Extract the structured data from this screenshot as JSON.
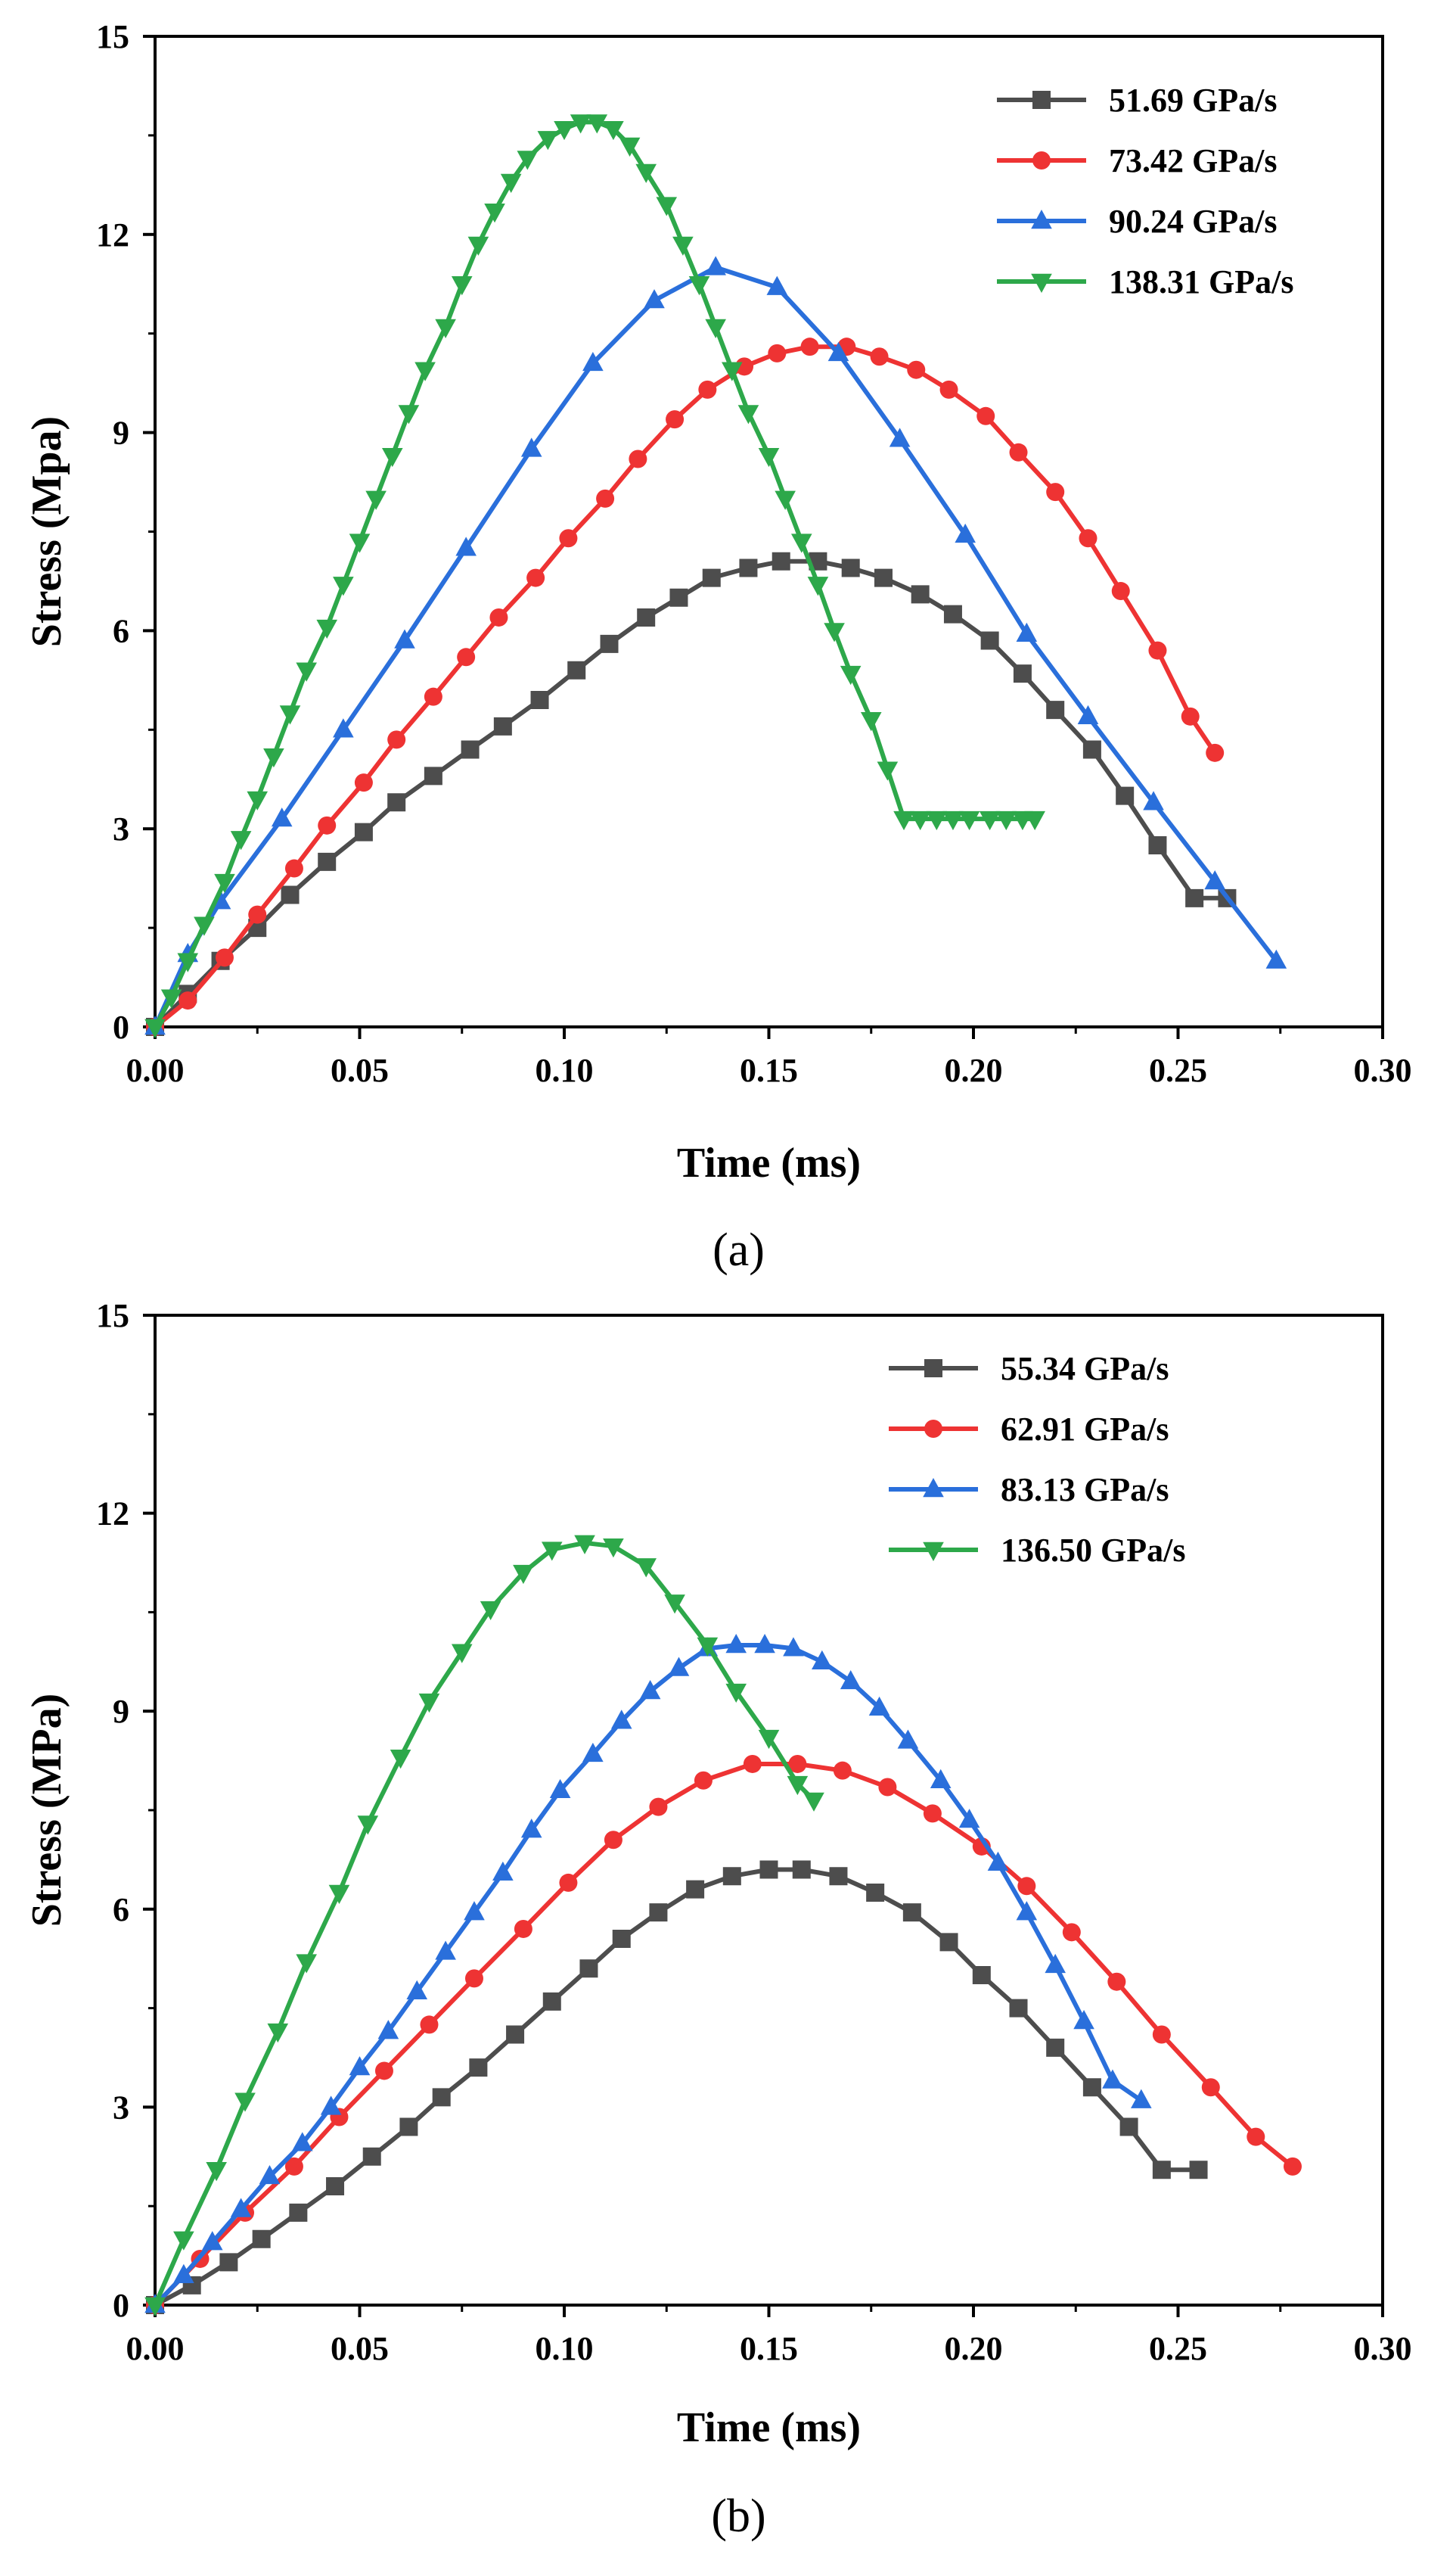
{
  "chart_data": [
    {
      "type": "line",
      "caption": "(a)",
      "xlabel": "Time (ms)",
      "ylabel": "Stress (Mpa)",
      "xlim": [
        0,
        0.3
      ],
      "ylim": [
        0,
        15
      ],
      "xticks": [
        "0.00",
        "0.05",
        "0.10",
        "0.15",
        "0.20",
        "0.25",
        "0.30"
      ],
      "yticks": [
        "0",
        "3",
        "6",
        "9",
        "12",
        "15"
      ],
      "legend_position": "top-right",
      "series": [
        {
          "name": "51.69 GPa/s",
          "color": "#4d4d4d",
          "marker": "square",
          "x": [
            0,
            0.008,
            0.016,
            0.025,
            0.033,
            0.042,
            0.051,
            0.059,
            0.068,
            0.077,
            0.085,
            0.094,
            0.103,
            0.111,
            0.12,
            0.128,
            0.136,
            0.145,
            0.153,
            0.162,
            0.17,
            0.178,
            0.187,
            0.195,
            0.204,
            0.212,
            0.22,
            0.229,
            0.237,
            0.245,
            0.254,
            0.262
          ],
          "y": [
            0,
            0.5,
            1.0,
            1.5,
            2.0,
            2.5,
            2.95,
            3.4,
            3.8,
            4.2,
            4.55,
            4.95,
            5.4,
            5.8,
            6.2,
            6.5,
            6.8,
            6.95,
            7.05,
            7.05,
            6.95,
            6.8,
            6.55,
            6.25,
            5.85,
            5.35,
            4.8,
            4.2,
            3.5,
            2.75,
            1.95,
            1.95
          ]
        },
        {
          "name": "73.42 GPa/s",
          "color": "#ee3333",
          "marker": "circle",
          "x": [
            0,
            0.008,
            0.017,
            0.025,
            0.034,
            0.042,
            0.051,
            0.059,
            0.068,
            0.076,
            0.084,
            0.093,
            0.101,
            0.11,
            0.118,
            0.127,
            0.135,
            0.144,
            0.152,
            0.16,
            0.169,
            0.177,
            0.186,
            0.194,
            0.203,
            0.211,
            0.22,
            0.228,
            0.236,
            0.245,
            0.253,
            0.259
          ],
          "y": [
            0,
            0.4,
            1.05,
            1.7,
            2.4,
            3.05,
            3.7,
            4.35,
            5.0,
            5.6,
            6.2,
            6.8,
            7.4,
            8.0,
            8.6,
            9.2,
            9.65,
            10.0,
            10.2,
            10.3,
            10.3,
            10.15,
            9.95,
            9.65,
            9.25,
            8.7,
            8.1,
            7.4,
            6.6,
            5.7,
            4.7,
            4.15
          ]
        },
        {
          "name": "90.24 GPa/s",
          "color": "#2a6fdb",
          "marker": "triangle-up",
          "x": [
            0,
            0.008,
            0.016,
            0.031,
            0.046,
            0.061,
            0.076,
            0.092,
            0.107,
            0.122,
            0.137,
            0.152,
            0.167,
            0.182,
            0.198,
            0.213,
            0.228,
            0.244,
            0.259,
            0.274
          ],
          "y": [
            0,
            1.1,
            1.9,
            3.15,
            4.5,
            5.85,
            7.25,
            8.75,
            10.05,
            11.0,
            11.5,
            11.2,
            10.2,
            8.9,
            7.45,
            5.95,
            4.7,
            3.4,
            2.2,
            1.0
          ]
        },
        {
          "name": "138.31 GPa/s",
          "color": "#2da84a",
          "marker": "triangle-down",
          "x": [
            0,
            0.004,
            0.008,
            0.012,
            0.017,
            0.021,
            0.025,
            0.029,
            0.033,
            0.037,
            0.042,
            0.046,
            0.05,
            0.054,
            0.058,
            0.062,
            0.066,
            0.071,
            0.075,
            0.079,
            0.083,
            0.087,
            0.091,
            0.096,
            0.1,
            0.104,
            0.108,
            0.112,
            0.116,
            0.12,
            0.125,
            0.129,
            0.133,
            0.137,
            0.141,
            0.145,
            0.15,
            0.154,
            0.158,
            0.162,
            0.166,
            0.17,
            0.175,
            0.179,
            0.183,
            0.187,
            0.191,
            0.195,
            0.199,
            0.204,
            0.208,
            0.212,
            0.215
          ],
          "y": [
            0,
            0.45,
            1.0,
            1.55,
            2.2,
            2.85,
            3.45,
            4.1,
            4.75,
            5.4,
            6.05,
            6.7,
            7.35,
            8.0,
            8.65,
            9.3,
            9.95,
            10.6,
            11.25,
            11.85,
            12.35,
            12.8,
            13.15,
            13.45,
            13.6,
            13.7,
            13.7,
            13.6,
            13.35,
            12.95,
            12.45,
            11.85,
            11.25,
            10.6,
            9.95,
            9.3,
            8.65,
            8.0,
            7.35,
            6.7,
            6.0,
            5.35,
            4.65,
            3.9,
            3.15,
            3.15,
            3.15,
            3.15,
            3.15,
            3.15,
            3.15,
            3.15,
            3.15
          ]
        }
      ]
    },
    {
      "type": "line",
      "caption": "(b)",
      "xlabel": "Time (ms)",
      "ylabel": "Stress (MPa)",
      "xlim": [
        0,
        0.3
      ],
      "ylim": [
        0,
        15
      ],
      "xticks": [
        "0.00",
        "0.05",
        "0.10",
        "0.15",
        "0.20",
        "0.25",
        "0.30"
      ],
      "yticks": [
        "0",
        "3",
        "6",
        "9",
        "12",
        "15"
      ],
      "legend_position": "top-right",
      "series": [
        {
          "name": "55.34 GPa/s",
          "color": "#4d4d4d",
          "marker": "square",
          "x": [
            0,
            0.009,
            0.018,
            0.026,
            0.035,
            0.044,
            0.053,
            0.062,
            0.07,
            0.079,
            0.088,
            0.097,
            0.106,
            0.114,
            0.123,
            0.132,
            0.141,
            0.15,
            0.158,
            0.167,
            0.176,
            0.185,
            0.194,
            0.202,
            0.211,
            0.22,
            0.229,
            0.238,
            0.246,
            0.255
          ],
          "y": [
            0,
            0.3,
            0.65,
            1.0,
            1.4,
            1.8,
            2.25,
            2.7,
            3.15,
            3.6,
            4.1,
            4.6,
            5.1,
            5.55,
            5.95,
            6.3,
            6.5,
            6.6,
            6.6,
            6.5,
            6.25,
            5.95,
            5.5,
            5.0,
            4.5,
            3.9,
            3.3,
            2.7,
            2.05,
            2.05
          ]
        },
        {
          "name": "62.91 GPa/s",
          "color": "#ee3333",
          "marker": "circle",
          "x": [
            0,
            0.011,
            0.022,
            0.034,
            0.045,
            0.056,
            0.067,
            0.078,
            0.09,
            0.101,
            0.112,
            0.123,
            0.134,
            0.146,
            0.157,
            0.168,
            0.179,
            0.19,
            0.202,
            0.213,
            0.224,
            0.235,
            0.246,
            0.258,
            0.269,
            0.278
          ],
          "y": [
            0,
            0.7,
            1.4,
            2.1,
            2.85,
            3.55,
            4.25,
            4.95,
            5.7,
            6.4,
            7.05,
            7.55,
            7.95,
            8.2,
            8.2,
            8.1,
            7.85,
            7.45,
            6.95,
            6.35,
            5.65,
            4.9,
            4.1,
            3.3,
            2.55,
            2.1
          ]
        },
        {
          "name": "83.13 GPa/s",
          "color": "#2a6fdb",
          "marker": "triangle-up",
          "x": [
            0,
            0.007,
            0.014,
            0.021,
            0.028,
            0.036,
            0.043,
            0.05,
            0.057,
            0.064,
            0.071,
            0.078,
            0.085,
            0.092,
            0.099,
            0.107,
            0.114,
            0.121,
            0.128,
            0.135,
            0.142,
            0.149,
            0.156,
            0.163,
            0.17,
            0.177,
            0.184,
            0.192,
            0.199,
            0.206,
            0.213,
            0.22,
            0.227,
            0.234,
            0.241
          ],
          "y": [
            0,
            0.45,
            0.95,
            1.45,
            1.95,
            2.45,
            3.0,
            3.6,
            4.15,
            4.75,
            5.35,
            5.95,
            6.55,
            7.2,
            7.8,
            8.35,
            8.85,
            9.3,
            9.65,
            9.95,
            10.0,
            10.0,
            9.95,
            9.75,
            9.45,
            9.05,
            8.55,
            7.95,
            7.35,
            6.7,
            5.95,
            5.15,
            4.3,
            3.4,
            3.1
          ]
        },
        {
          "name": "136.50 GPa/s",
          "color": "#2da84a",
          "marker": "triangle-down",
          "x": [
            0,
            0.007,
            0.015,
            0.022,
            0.03,
            0.037,
            0.045,
            0.052,
            0.06,
            0.067,
            0.075,
            0.082,
            0.09,
            0.097,
            0.105,
            0.112,
            0.12,
            0.127,
            0.135,
            0.142,
            0.15,
            0.157,
            0.161
          ],
          "y": [
            0,
            1.0,
            2.05,
            3.1,
            4.15,
            5.2,
            6.25,
            7.3,
            8.3,
            9.15,
            9.9,
            10.55,
            11.1,
            11.45,
            11.55,
            11.5,
            11.2,
            10.65,
            10.0,
            9.3,
            8.6,
            7.9,
            7.65
          ]
        }
      ]
    }
  ]
}
